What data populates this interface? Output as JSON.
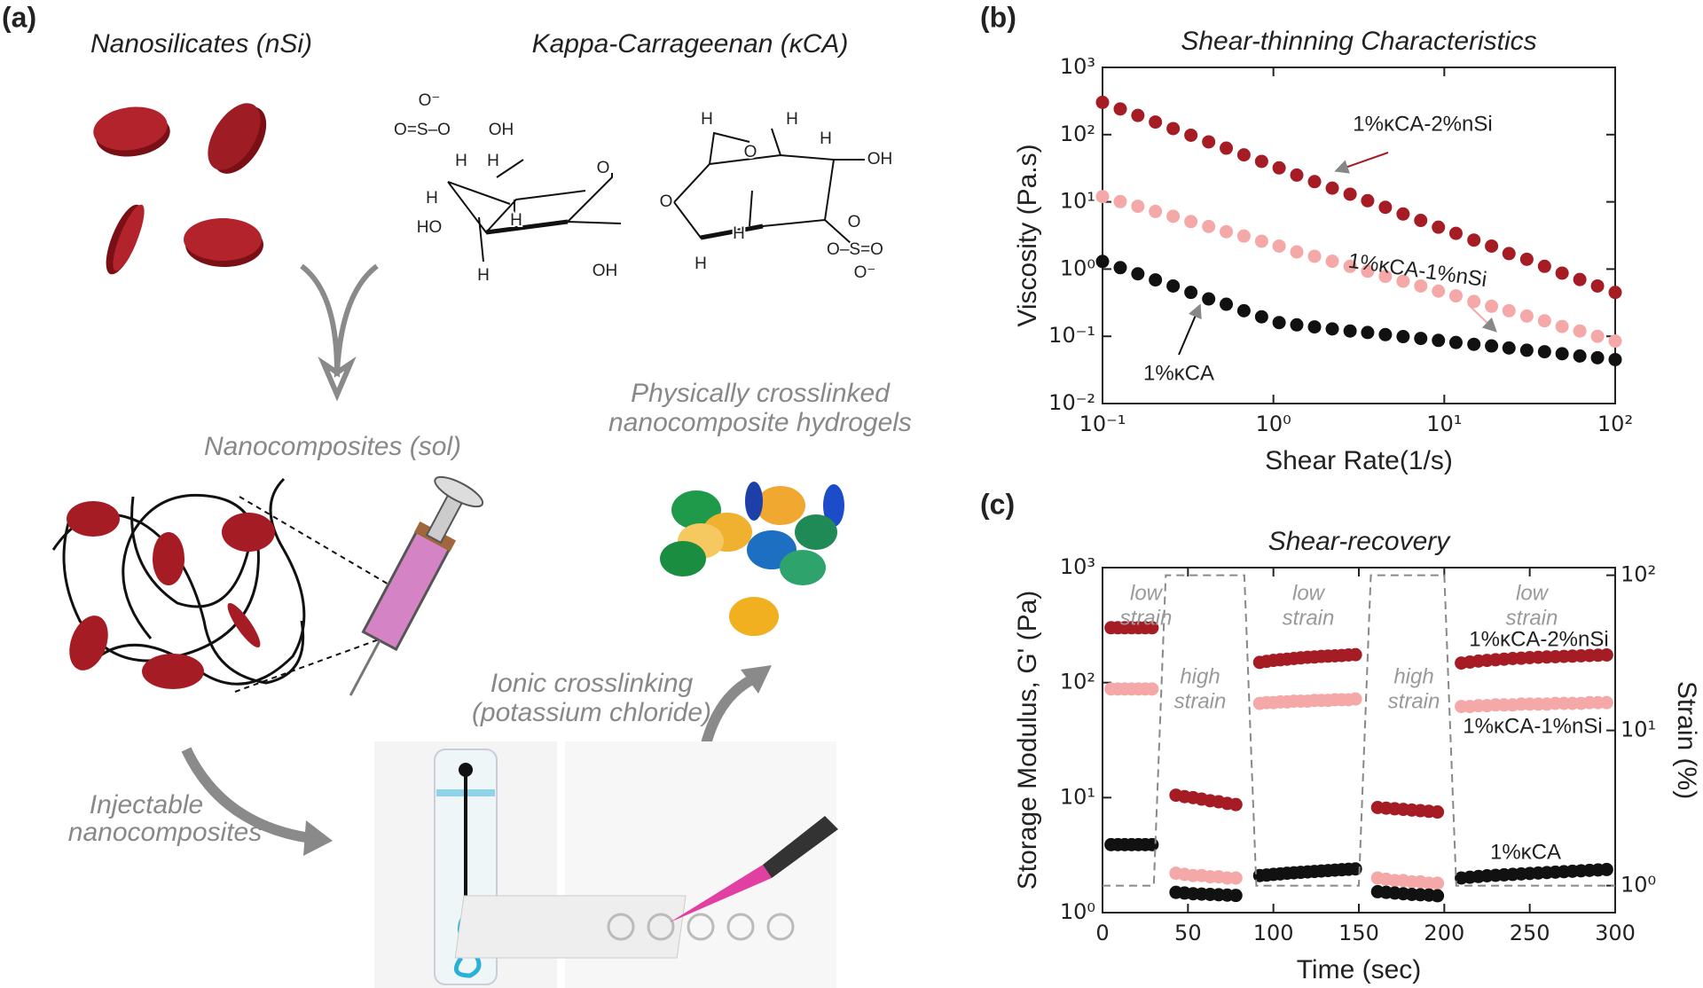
{
  "diagram": {
    "panel_label": "(a)",
    "nanosilicates": "Nanosilicates (nSi)",
    "carrageenan": "Kappa-Carrageenan (κCA)",
    "sol": "Nanocomposites (sol)",
    "hydrogels": [
      "Physically crosslinked",
      "nanocomposite hydrogels"
    ],
    "ionic": [
      "Ionic crosslinking",
      "(potassium chloride)"
    ],
    "injectable": [
      "Injectable",
      "nanocomposites"
    ],
    "structure_labels": [
      "O⁻",
      "O=S–O",
      "OH",
      "H",
      "H",
      "O",
      "H",
      "HO",
      "H",
      "O",
      "H",
      "OH",
      "H",
      "H",
      "O",
      "H",
      "OH",
      "H",
      "H",
      "O",
      "O–S=O",
      "O⁻"
    ]
  },
  "chart_data": [
    {
      "type": "scatter",
      "panel_label": "(b)",
      "title": "Shear-thinning Characteristics",
      "x_label": "Shear Rate(1/s)",
      "y_label": "Viscosity (Pa.s)",
      "x_log": true,
      "y_log": true,
      "x": [
        0.1,
        0.127,
        0.161,
        0.204,
        0.259,
        0.329,
        0.418,
        0.53,
        0.672,
        0.853,
        1.08,
        1.37,
        1.74,
        2.21,
        2.81,
        3.56,
        4.52,
        5.74,
        7.28,
        9.24,
        11.7,
        14.9,
        18.9,
        23.9,
        30.4,
        38.6,
        48.9,
        62.1,
        78.8,
        100
      ],
      "xlim": [
        0.1,
        100
      ],
      "xticks": [
        {
          "value": 0.1,
          "label": "10⁻¹"
        },
        {
          "value": 1,
          "label": "10⁰"
        },
        {
          "value": 10,
          "label": "10¹"
        },
        {
          "value": 100,
          "label": "10²"
        }
      ],
      "ylim": [
        0.01,
        1000
      ],
      "yticks": [
        {
          "value": 0.01,
          "label": "10⁻²"
        },
        {
          "value": 0.1,
          "label": "10⁻¹"
        },
        {
          "value": 1,
          "label": "10⁰"
        },
        {
          "value": 10,
          "label": "10¹"
        },
        {
          "value": 100,
          "label": "10²"
        },
        {
          "value": 1000,
          "label": "10³"
        }
      ],
      "series": [
        {
          "name": "1%κCA-2%nSi",
          "color": "#a51c24",
          "values": [
            302,
            241,
            193,
            154,
            123,
            98,
            78,
            63,
            50,
            40,
            32,
            25,
            20,
            16,
            13,
            10.4,
            8.3,
            6.6,
            5.3,
            4.2,
            3.4,
            2.7,
            2.2,
            1.7,
            1.4,
            1.1,
            0.87,
            0.7,
            0.56,
            0.45
          ]
        },
        {
          "name": "1%κCA-1%nSi",
          "color": "#f4a9a8",
          "values": [
            12,
            10.1,
            8.6,
            7.2,
            6.1,
            5.1,
            4.3,
            3.6,
            3.1,
            2.6,
            2.2,
            1.8,
            1.55,
            1.31,
            1.1,
            0.93,
            0.78,
            0.66,
            0.56,
            0.47,
            0.4,
            0.33,
            0.28,
            0.24,
            0.2,
            0.17,
            0.14,
            0.12,
            0.1,
            0.085
          ]
        },
        {
          "name": "1%κCA",
          "color": "#111111",
          "values": [
            1.3,
            1.05,
            0.85,
            0.69,
            0.56,
            0.45,
            0.36,
            0.3,
            0.24,
            0.195,
            0.16,
            0.148,
            0.138,
            0.129,
            0.12,
            0.114,
            0.106,
            0.099,
            0.093,
            0.087,
            0.081,
            0.076,
            0.072,
            0.067,
            0.062,
            0.059,
            0.055,
            0.051,
            0.048,
            0.045
          ]
        }
      ]
    },
    {
      "type": "scatter",
      "panel_label": "(c)",
      "title": "Shear-recovery",
      "x_label": "Time (sec)",
      "y_label": "Storage Modulus, G' (Pa)",
      "y2_label": "Strain (%)",
      "y_log": true,
      "y2_log": true,
      "x": [
        5,
        9,
        13,
        17,
        21,
        25,
        29,
        43,
        48,
        53,
        58,
        63,
        68,
        73,
        78,
        92,
        96,
        100,
        104,
        108,
        112,
        116,
        120,
        124,
        128,
        132,
        136,
        140,
        144,
        148,
        161,
        166,
        171,
        176,
        181,
        186,
        191,
        196,
        210,
        215,
        220,
        225,
        230,
        235,
        240,
        245,
        250,
        255,
        260,
        265,
        270,
        275,
        280,
        285,
        290,
        295
      ],
      "xlim": [
        0,
        300
      ],
      "xticks": [
        0,
        50,
        100,
        150,
        200,
        250,
        300
      ],
      "ylim": [
        1,
        1000
      ],
      "yticks": [
        {
          "value": 1,
          "label": "10⁰"
        },
        {
          "value": 10,
          "label": "10¹"
        },
        {
          "value": 100,
          "label": "10²"
        },
        {
          "value": 1000,
          "label": "10³"
        }
      ],
      "y2lim": [
        0.67,
        112
      ],
      "y2ticks": [
        {
          "value": 1,
          "label": "10⁰"
        },
        {
          "value": 10,
          "label": "10¹"
        },
        {
          "value": 100,
          "label": "10²"
        }
      ],
      "series": [
        {
          "name": "1%κCA-2%nSi",
          "color": "#a51c24",
          "values": [
            300,
            300,
            300,
            300,
            300,
            300,
            300,
            10.5,
            10.2,
            10,
            9.7,
            9.4,
            9.2,
            8.9,
            8.7,
            150,
            153,
            156,
            158,
            160,
            162,
            164,
            166,
            167,
            169,
            170,
            171,
            172,
            174,
            175,
            8.2,
            8.1,
            8,
            7.9,
            7.8,
            7.7,
            7.6,
            7.5,
            148,
            151,
            154,
            156,
            158,
            160,
            162,
            163,
            165,
            166,
            167,
            168,
            169,
            170,
            171,
            172,
            173,
            174
          ]
        },
        {
          "name": "1%κCA-1%nSi",
          "color": "#f4a9a8",
          "values": [
            88,
            88,
            88,
            88,
            88,
            88,
            88,
            2.2,
            2.15,
            2.1,
            2.1,
            2.05,
            2.05,
            2,
            2,
            66,
            67,
            67,
            68,
            68,
            69,
            69,
            69,
            70,
            70,
            70,
            71,
            71,
            71,
            72,
            2,
            1.95,
            1.9,
            1.9,
            1.85,
            1.85,
            1.8,
            1.8,
            62,
            62,
            63,
            63,
            64,
            64,
            64,
            65,
            65,
            65,
            65,
            66,
            66,
            66,
            66,
            67,
            67,
            67
          ]
        },
        {
          "name": "1%κCA",
          "color": "#111111",
          "values": [
            3.9,
            3.9,
            3.9,
            3.9,
            3.9,
            3.9,
            3.9,
            1.5,
            1.48,
            1.46,
            1.45,
            1.44,
            1.43,
            1.42,
            1.41,
            2.1,
            2.12,
            2.15,
            2.17,
            2.2,
            2.22,
            2.24,
            2.26,
            2.28,
            2.3,
            2.32,
            2.34,
            2.36,
            2.38,
            2.4,
            1.52,
            1.5,
            1.48,
            1.46,
            1.44,
            1.43,
            1.42,
            1.4,
            2,
            2.03,
            2.06,
            2.09,
            2.11,
            2.13,
            2.15,
            2.17,
            2.19,
            2.21,
            2.23,
            2.25,
            2.27,
            2.29,
            2.31,
            2.33,
            2.35,
            2.37
          ]
        },
        {
          "axis": "y2",
          "color": "#888888",
          "x": [
            0,
            30,
            37,
            83,
            90,
            150,
            157,
            200,
            207,
            300
          ],
          "values": [
            1,
            1,
            100,
            100,
            1,
            1,
            100,
            100,
            1,
            1
          ]
        }
      ],
      "annotations": [
        {
          "lines": [
            "low",
            "strain"
          ]
        },
        {
          "lines": [
            "high",
            "strain"
          ]
        },
        {
          "lines": [
            "low",
            "strain"
          ]
        },
        {
          "lines": [
            "high",
            "strain"
          ]
        },
        {
          "lines": [
            "low",
            "strain"
          ]
        }
      ]
    }
  ]
}
